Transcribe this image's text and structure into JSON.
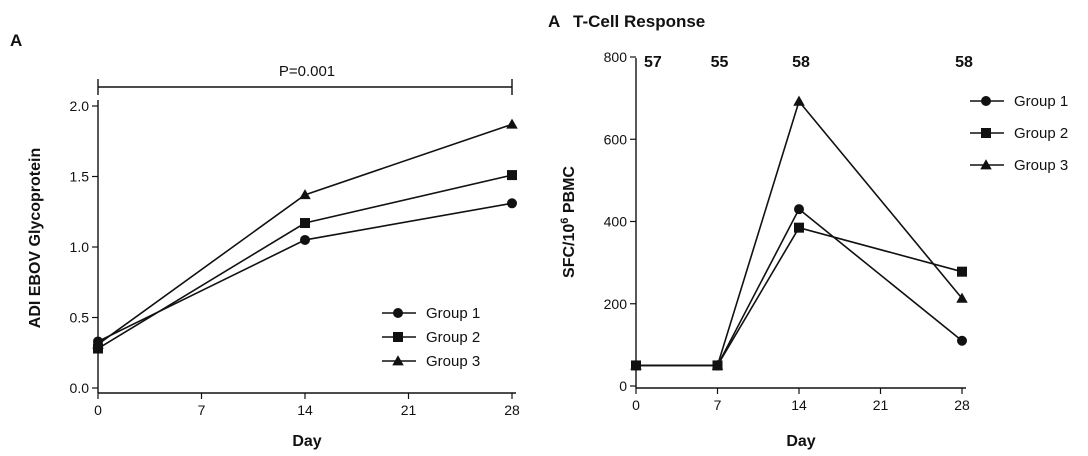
{
  "chart_data": [
    {
      "type": "line",
      "panel_label": "A",
      "title": "",
      "xlabel": "Day",
      "ylabel": "ADI EBOV Glycoprotein",
      "xlim": [
        0,
        28
      ],
      "ylim": [
        0,
        2.0
      ],
      "xticks": [
        0,
        7,
        14,
        21,
        28
      ],
      "yticks": [
        0.0,
        0.5,
        1.0,
        1.5,
        2.0
      ],
      "ytick_labels": [
        "0.0",
        "0.5",
        "1.0",
        "1.5",
        "2.0"
      ],
      "x": [
        0,
        14,
        28
      ],
      "series": [
        {
          "name": "Group 1",
          "marker": "circle",
          "values": [
            0.33,
            1.05,
            1.31
          ]
        },
        {
          "name": "Group 2",
          "marker": "square",
          "values": [
            0.28,
            1.17,
            1.51
          ]
        },
        {
          "name": "Group 3",
          "marker": "triangle",
          "values": [
            0.31,
            1.37,
            1.87
          ]
        }
      ],
      "annotation": {
        "text": "P=0.001",
        "from": 0,
        "to": 28
      },
      "legend_position": "bottom-right",
      "grid": false
    },
    {
      "type": "line",
      "panel_label": "A",
      "title": "T-Cell Response",
      "xlabel": "Day",
      "ylabel_main": "SFC/10",
      "ylabel_sup": "6",
      "ylabel_tail": " PBMC",
      "xlim": [
        0,
        28
      ],
      "ylim": [
        0,
        800
      ],
      "xticks": [
        0,
        7,
        14,
        21,
        28
      ],
      "yticks": [
        0,
        200,
        400,
        600,
        800
      ],
      "ytick_labels": [
        "0",
        "200",
        "400",
        "600",
        "800"
      ],
      "x": [
        0,
        7,
        14,
        28
      ],
      "series": [
        {
          "name": "Group 1",
          "marker": "circle",
          "values": [
            50,
            50,
            430,
            110
          ]
        },
        {
          "name": "Group 2",
          "marker": "square",
          "values": [
            50,
            50,
            385,
            278
          ]
        },
        {
          "name": "Group 3",
          "marker": "triangle",
          "values": [
            50,
            50,
            692,
            213
          ]
        }
      ],
      "top_labels": [
        {
          "x": 0,
          "text": "57"
        },
        {
          "x": 7,
          "text": "55"
        },
        {
          "x": 14,
          "text": "58"
        },
        {
          "x": 28,
          "text": "58"
        }
      ],
      "legend_position": "top-right",
      "grid": false
    }
  ]
}
